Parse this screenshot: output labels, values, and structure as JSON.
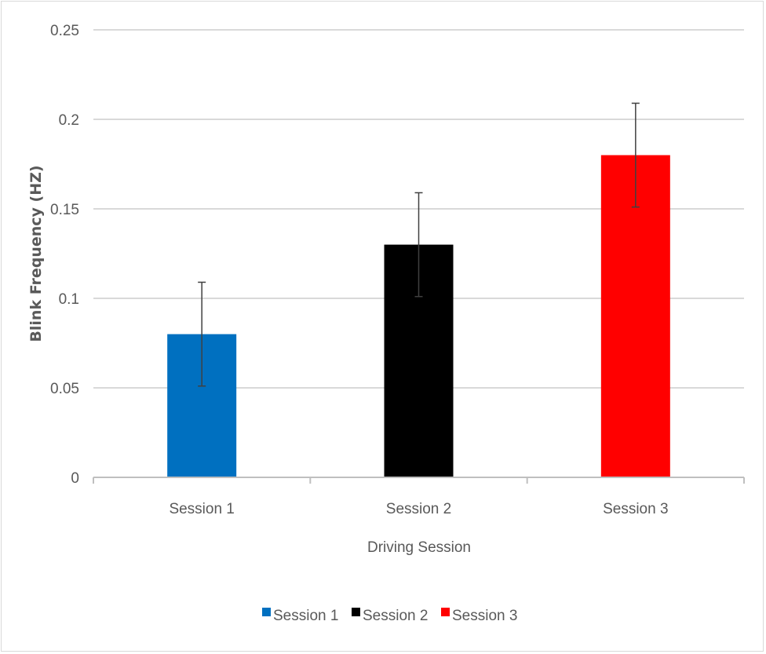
{
  "chart_data": {
    "type": "bar",
    "title": "",
    "xlabel": "Driving Session",
    "ylabel": "Blink Frequency (HZ)",
    "categories": [
      "Session 1",
      "Session 2",
      "Session 3"
    ],
    "values": [
      0.08,
      0.13,
      0.18
    ],
    "error": [
      0.029,
      0.029,
      0.029
    ],
    "colors": [
      "#0070c0",
      "#000000",
      "#ff0000"
    ],
    "ylim": [
      0,
      0.25
    ],
    "yticks": [
      "0",
      "0.05",
      "0.1",
      "0.15",
      "0.2",
      "0.25"
    ],
    "ytick_values": [
      0,
      0.05,
      0.1,
      0.15,
      0.2,
      0.25
    ],
    "grid": true,
    "legend": {
      "position": "bottom",
      "entries": [
        "Session 1",
        "Session 2",
        "Session 3"
      ]
    }
  }
}
